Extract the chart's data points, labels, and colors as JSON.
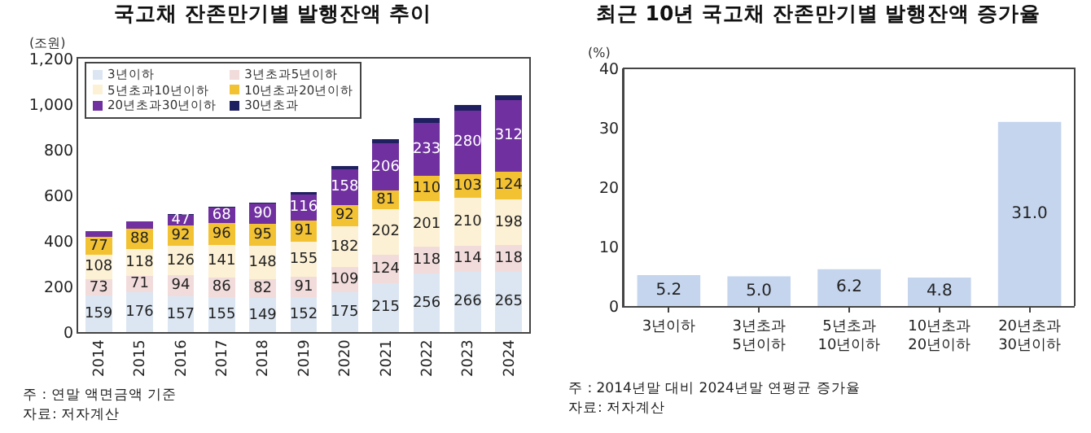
{
  "chart_data": [
    {
      "type": "bar",
      "title": "국고채 잔존만기별 발행잔액 추이",
      "ylabel": "(조원)",
      "stacked": true,
      "legend": "top left",
      "grid": false,
      "categories": [
        "2014",
        "2015",
        "2016",
        "2017",
        "2018",
        "2019",
        "2020",
        "2021",
        "2022",
        "2023",
        "2024"
      ],
      "ylim": [
        0,
        1200
      ],
      "yticks": [
        0,
        200,
        400,
        600,
        800,
        {
          "value": 1000,
          "label": "1,000"
        },
        {
          "value": 1200,
          "label": "1,200"
        }
      ],
      "series": [
        {
          "name": "3년이하",
          "color": "#dce6f2",
          "values": [
            159,
            176,
            157,
            155,
            149,
            152,
            175,
            215,
            256,
            266,
            265
          ],
          "value_labels": [
            "159",
            "176",
            "157",
            "155",
            "149",
            "152",
            "175",
            "215",
            "256",
            "266",
            "265"
          ]
        },
        {
          "name": "3년초과5년이하",
          "color": "#f2dcdb",
          "values": [
            73,
            71,
            94,
            86,
            82,
            91,
            109,
            124,
            118,
            114,
            118
          ],
          "value_labels": [
            "73",
            "71",
            "94",
            "86",
            "82",
            "91",
            "109",
            "124",
            "118",
            "114",
            "118"
          ]
        },
        {
          "name": "5년초과10년이하",
          "color": "#fdf1d5",
          "values": [
            108,
            118,
            126,
            141,
            148,
            155,
            182,
            202,
            201,
            210,
            198
          ],
          "value_labels": [
            "108",
            "118",
            "126",
            "141",
            "148",
            "155",
            "182",
            "202",
            "201",
            "210",
            "198"
          ]
        },
        {
          "name": "10년초과20년이하",
          "color": "#f3c232",
          "values": [
            77,
            88,
            92,
            96,
            95,
            91,
            92,
            81,
            110,
            103,
            124
          ],
          "value_labels": [
            "77",
            "88",
            "92",
            "96",
            "95",
            "91",
            "92",
            "81",
            "110",
            "103",
            "124"
          ]
        },
        {
          "name": "20년초과30년이하",
          "color": "#7030a0",
          "values": [
            25,
            32,
            47,
            68,
            90,
            116,
            158,
            206,
            233,
            280,
            312
          ],
          "value_labels": [
            null,
            null,
            "47",
            "68",
            "90",
            "116",
            "158",
            "206",
            "233",
            "280",
            "312"
          ]
        },
        {
          "name": "30년초과",
          "color": "#1f2060",
          "values": [
            2,
            2,
            3,
            4,
            5,
            8,
            12,
            18,
            20,
            25,
            23
          ]
        }
      ],
      "annotations": [
        "주 : 연말 액면금액 기준",
        "자료: 저자계산"
      ]
    },
    {
      "type": "bar",
      "title": "최근 10년 국고채 잔존만기별 발행잔액 증가율",
      "ylabel": "(%)",
      "grid": false,
      "data_labels": true,
      "categories": [
        "3년이하",
        "3년초과 5년이하",
        "5년초과 10년이하",
        "10년초과 20년이하",
        "20년초과 30년이하"
      ],
      "ylim": [
        0,
        40
      ],
      "yticks": [
        0,
        10,
        20,
        30,
        40
      ],
      "series": [
        {
          "color": "#c5d5ee",
          "values": [
            5.2,
            5.0,
            6.2,
            4.8,
            31.0
          ],
          "value_labels": [
            "5.2",
            "5.0",
            "6.2",
            "4.8",
            "31.0"
          ]
        }
      ],
      "annotations": [
        "주 : 2014년말 대비 2024년말 연평균 증가율",
        "자료: 저자계산"
      ]
    }
  ]
}
